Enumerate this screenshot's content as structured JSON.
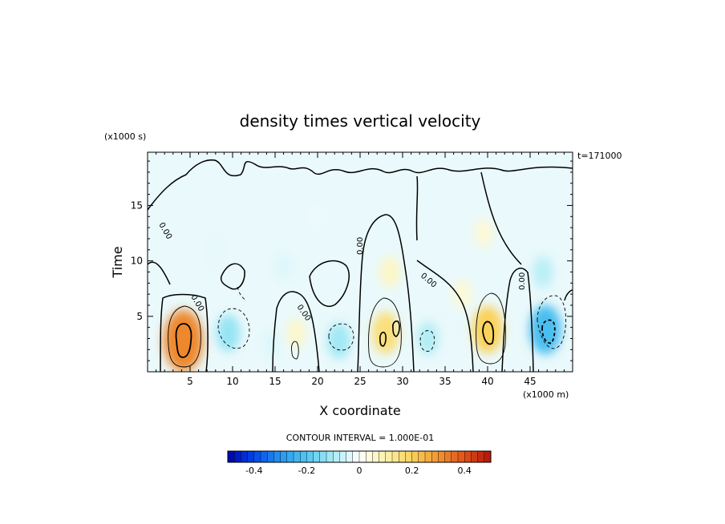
{
  "chart_data": {
    "type": "heatmap",
    "title": "density times vertical velocity",
    "xlabel": "X coordinate",
    "ylabel": "Time",
    "x_unit": "(x1000 m)",
    "y_unit": "(x1000 s)",
    "time_label": "t=171000",
    "contour_interval_label": "CONTOUR INTERVAL = 1.000E-01",
    "zero_contour_label": "0.00",
    "xlim": [
      0,
      50
    ],
    "ylim": [
      0,
      19.8
    ],
    "x_ticks": [
      5,
      10,
      15,
      20,
      25,
      30,
      35,
      40,
      45
    ],
    "y_ticks": [
      5,
      10,
      15
    ],
    "x_tick_labels": [
      "5",
      "10",
      "15",
      "20",
      "25",
      "30",
      "35",
      "40",
      "45"
    ],
    "y_tick_labels": [
      "5",
      "10",
      "15"
    ],
    "colorbar": {
      "range": [
        -0.5,
        0.5
      ],
      "ticks": [
        -0.4,
        -0.2,
        0,
        0.2,
        0.4
      ],
      "tick_labels": [
        "-0.4",
        "-0.2",
        "0",
        "0.2",
        "0.4"
      ]
    },
    "cells": [
      {
        "x": 4.2,
        "y": 2.8,
        "value": 0.32
      },
      {
        "x": 9.5,
        "y": 3.5,
        "value": -0.12
      },
      {
        "x": 14.5,
        "y": 2.5,
        "value": -0.04
      },
      {
        "x": 17.5,
        "y": 3.5,
        "value": 0.06
      },
      {
        "x": 22.5,
        "y": 2.8,
        "value": -0.11
      },
      {
        "x": 28.0,
        "y": 3.5,
        "value": 0.16
      },
      {
        "x": 28.5,
        "y": 9.0,
        "value": 0.07
      },
      {
        "x": 33.0,
        "y": 3.0,
        "value": -0.09
      },
      {
        "x": 37.0,
        "y": 7.0,
        "value": 0.05
      },
      {
        "x": 40.0,
        "y": 3.8,
        "value": 0.2
      },
      {
        "x": 39.5,
        "y": 12.5,
        "value": 0.05
      },
      {
        "x": 46.8,
        "y": 3.8,
        "value": -0.22
      },
      {
        "x": 46.5,
        "y": 9.0,
        "value": -0.08
      },
      {
        "x": 16.0,
        "y": 9.5,
        "value": -0.04
      },
      {
        "x": 20.0,
        "y": 14.0,
        "value": -0.02
      },
      {
        "x": 8.0,
        "y": 11.0,
        "value": -0.03
      }
    ]
  }
}
